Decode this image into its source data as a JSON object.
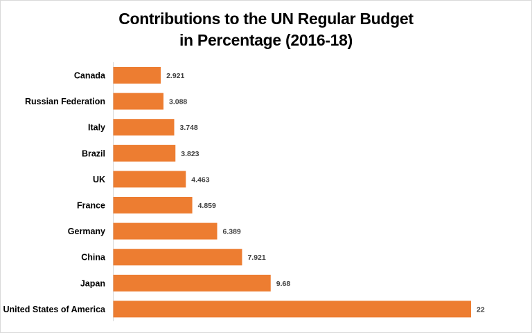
{
  "chart_data": {
    "type": "bar",
    "orientation": "horizontal",
    "title_lines": [
      "Contributions to the UN Regular Budget",
      "in Percentage (2016-18)"
    ],
    "categories": [
      "Canada",
      "Russian Federation",
      "Italy",
      "Brazil",
      "UK",
      "France",
      "Germany",
      "China",
      "Japan",
      "United States of America"
    ],
    "values": [
      2.921,
      3.088,
      3.748,
      3.823,
      4.463,
      4.859,
      6.389,
      7.921,
      9.68,
      22
    ],
    "value_labels": [
      "2.921",
      "3.088",
      "3.748",
      "3.823",
      "4.463",
      "4.859",
      "6.389",
      "7.921",
      "9.68",
      "22"
    ],
    "xlabel": "",
    "ylabel": "",
    "xlim": [
      0,
      22
    ],
    "grid": false,
    "legend": "none",
    "bar_color": "#ED7D31"
  }
}
